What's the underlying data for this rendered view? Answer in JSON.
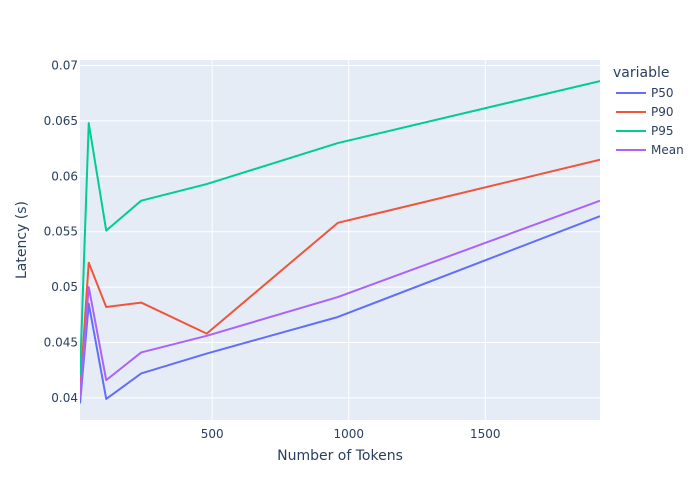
{
  "chart_data": {
    "type": "line",
    "xlabel": "Number of Tokens",
    "ylabel": "Latency (s)",
    "xlim": [
      16,
      1920
    ],
    "ylim": [
      0.038,
      0.0705
    ],
    "x_ticks": [
      500,
      1000,
      1500
    ],
    "y_ticks": [
      0.04,
      0.045,
      0.05,
      0.055,
      0.06,
      0.065,
      0.07
    ],
    "x_tick_labels": [
      "500",
      "1000",
      "1500"
    ],
    "y_tick_labels": [
      "0.04",
      "0.045",
      "0.05",
      "0.055",
      "0.06",
      "0.065",
      "0.07"
    ],
    "grid": true,
    "legend_title": "variable",
    "legend_position": "right",
    "x": [
      16,
      48,
      112,
      240,
      480,
      960,
      1920
    ],
    "series": [
      {
        "name": "P50",
        "color": "#636efa",
        "values": [
          0.0395,
          0.0485,
          0.0399,
          0.0422,
          0.044,
          0.0473,
          0.0564
        ]
      },
      {
        "name": "P90",
        "color": "#ef553b",
        "values": [
          0.0405,
          0.0522,
          0.0482,
          0.0486,
          0.0458,
          0.0558,
          0.0615
        ]
      },
      {
        "name": "P95",
        "color": "#00cc96",
        "values": [
          0.042,
          0.0648,
          0.0551,
          0.0578,
          0.0593,
          0.063,
          0.0686
        ]
      },
      {
        "name": "Mean",
        "color": "#ab63fa",
        "values": [
          0.04,
          0.05,
          0.0416,
          0.0441,
          0.0456,
          0.0491,
          0.0578
        ]
      }
    ]
  }
}
